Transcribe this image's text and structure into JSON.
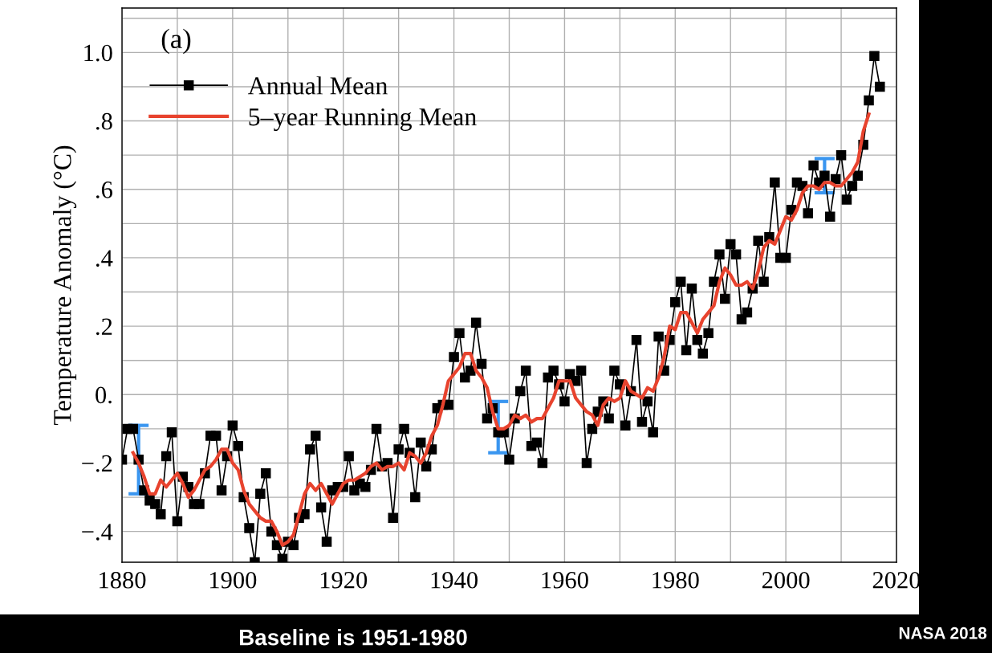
{
  "chart_data": {
    "type": "line",
    "ylabel": "Temperature Anomaly (°C)",
    "annotations": [
      "(a)",
      "Baseline is 1951-1980",
      "NASA 2018"
    ],
    "xlim": [
      1880,
      2020
    ],
    "xticks": [
      1880,
      {
        "value": 1890,
        "label": null
      },
      1900,
      {
        "value": 1910,
        "label": null
      },
      1920,
      {
        "value": 1930,
        "label": null
      },
      1940,
      {
        "value": 1950,
        "label": null
      },
      1960,
      {
        "value": 1970,
        "label": null
      },
      1980,
      {
        "value": 1990,
        "label": null
      },
      2000,
      {
        "value": 2010,
        "label": null
      },
      2020
    ],
    "ylim": [
      -0.49,
      1.13
    ],
    "yticks": [
      {
        "value": -0.4,
        "label": "−.4"
      },
      {
        "value": -0.3,
        "label": null
      },
      {
        "value": -0.2,
        "label": "−.2"
      },
      {
        "value": -0.1,
        "label": null
      },
      {
        "value": 0,
        "label": "0."
      },
      {
        "value": 0.1,
        "label": null
      },
      {
        "value": 0.2,
        "label": ".2"
      },
      {
        "value": 0.3,
        "label": null
      },
      {
        "value": 0.4,
        "label": ".4"
      },
      {
        "value": 0.5,
        "label": null
      },
      {
        "value": 0.6,
        "label": ".6"
      },
      {
        "value": 0.7,
        "label": null
      },
      {
        "value": 0.8,
        "label": ".8"
      },
      {
        "value": 0.9,
        "label": null
      },
      {
        "value": 1.0,
        "label": "1.0"
      },
      {
        "value": 1.1,
        "label": null
      }
    ],
    "grid": true,
    "legend": "top left",
    "series": [
      {
        "name": "Annual Mean",
        "color": "#000000",
        "marker": "square",
        "x": [
          1880,
          1881,
          1882,
          1883,
          1884,
          1885,
          1886,
          1887,
          1888,
          1889,
          1890,
          1891,
          1892,
          1893,
          1894,
          1895,
          1896,
          1897,
          1898,
          1899,
          1900,
          1901,
          1902,
          1903,
          1904,
          1905,
          1906,
          1907,
          1908,
          1909,
          1910,
          1911,
          1912,
          1913,
          1914,
          1915,
          1916,
          1917,
          1918,
          1919,
          1920,
          1921,
          1922,
          1923,
          1924,
          1925,
          1926,
          1927,
          1928,
          1929,
          1930,
          1931,
          1932,
          1933,
          1934,
          1935,
          1936,
          1937,
          1938,
          1939,
          1940,
          1941,
          1942,
          1943,
          1944,
          1945,
          1946,
          1947,
          1948,
          1949,
          1950,
          1951,
          1952,
          1953,
          1954,
          1955,
          1956,
          1957,
          1958,
          1959,
          1960,
          1961,
          1962,
          1963,
          1964,
          1965,
          1966,
          1967,
          1968,
          1969,
          1970,
          1971,
          1972,
          1973,
          1974,
          1975,
          1976,
          1977,
          1978,
          1979,
          1980,
          1981,
          1982,
          1983,
          1984,
          1985,
          1986,
          1987,
          1988,
          1989,
          1990,
          1991,
          1992,
          1993,
          1994,
          1995,
          1996,
          1997,
          1998,
          1999,
          2000,
          2001,
          2002,
          2003,
          2004,
          2005,
          2006,
          2007,
          2008,
          2009,
          2010,
          2011,
          2012,
          2013,
          2014,
          2015,
          2016,
          2017
        ],
        "values": [
          -0.19,
          -0.1,
          -0.1,
          -0.19,
          -0.28,
          -0.31,
          -0.32,
          -0.35,
          -0.18,
          -0.11,
          -0.37,
          -0.24,
          -0.27,
          -0.32,
          -0.32,
          -0.23,
          -0.12,
          -0.12,
          -0.28,
          -0.18,
          -0.09,
          -0.15,
          -0.3,
          -0.39,
          -0.49,
          -0.29,
          -0.23,
          -0.4,
          -0.44,
          -0.48,
          -0.43,
          -0.44,
          -0.36,
          -0.35,
          -0.16,
          -0.12,
          -0.33,
          -0.43,
          -0.28,
          -0.27,
          -0.27,
          -0.18,
          -0.28,
          -0.26,
          -0.27,
          -0.22,
          -0.1,
          -0.21,
          -0.2,
          -0.36,
          -0.16,
          -0.1,
          -0.17,
          -0.3,
          -0.14,
          -0.21,
          -0.16,
          -0.04,
          -0.03,
          -0.03,
          0.11,
          0.18,
          0.05,
          0.07,
          0.21,
          0.09,
          -0.07,
          -0.04,
          -0.11,
          -0.11,
          -0.19,
          -0.07,
          0.01,
          0.07,
          -0.15,
          -0.14,
          -0.2,
          0.05,
          0.07,
          0.03,
          -0.02,
          0.06,
          0.04,
          0.07,
          -0.2,
          -0.1,
          -0.05,
          -0.02,
          -0.07,
          0.07,
          0.03,
          -0.09,
          0.01,
          0.16,
          -0.08,
          -0.02,
          -0.11,
          0.17,
          0.07,
          0.16,
          0.27,
          0.33,
          0.13,
          0.31,
          0.16,
          0.12,
          0.18,
          0.33,
          0.41,
          0.28,
          0.44,
          0.41,
          0.22,
          0.24,
          0.31,
          0.45,
          0.33,
          0.46,
          0.62,
          0.4,
          0.4,
          0.54,
          0.62,
          0.61,
          0.53,
          0.67,
          0.62,
          0.64,
          0.52,
          0.63,
          0.7,
          0.57,
          0.61,
          0.64,
          0.73,
          0.86,
          0.99,
          0.9
        ],
        "errors": [
          null,
          null,
          null,
          [
            -0.29,
            -0.09
          ],
          null,
          null,
          null,
          null,
          null,
          null,
          null,
          null,
          null,
          null,
          null,
          null,
          null,
          null,
          null,
          null,
          null,
          null,
          null,
          null,
          null,
          null,
          null,
          null,
          null,
          null,
          null,
          null,
          null,
          null,
          null,
          null,
          null,
          null,
          null,
          null,
          null,
          null,
          null,
          null,
          null,
          null,
          null,
          null,
          null,
          null,
          null,
          null,
          null,
          null,
          null,
          null,
          null,
          null,
          null,
          null,
          null,
          null,
          null,
          null,
          null,
          null,
          null,
          null,
          [
            -0.17,
            -0.02
          ],
          null,
          null,
          null,
          null,
          null,
          null,
          null,
          null,
          null,
          null,
          null,
          null,
          null,
          null,
          null,
          null,
          null,
          null,
          null,
          null,
          null,
          null,
          null,
          null,
          null,
          null,
          null,
          null,
          null,
          null,
          null,
          null,
          null,
          null,
          null,
          null,
          null,
          null,
          null,
          null,
          null,
          null,
          null,
          null,
          null,
          null,
          null,
          null,
          null,
          null,
          null,
          null,
          null,
          null,
          null,
          null,
          null,
          null,
          [
            0.59,
            0.69
          ],
          null,
          null,
          null,
          null,
          null,
          null,
          null,
          null,
          null,
          null
        ]
      },
      {
        "name": "5–year Running Mean",
        "color": "#e8432e",
        "marker": "none",
        "x": [
          1882,
          1883,
          1884,
          1885,
          1886,
          1887,
          1888,
          1889,
          1890,
          1891,
          1892,
          1893,
          1894,
          1895,
          1896,
          1897,
          1898,
          1899,
          1900,
          1901,
          1902,
          1903,
          1904,
          1905,
          1906,
          1907,
          1908,
          1909,
          1910,
          1911,
          1912,
          1913,
          1914,
          1915,
          1916,
          1917,
          1918,
          1919,
          1920,
          1921,
          1922,
          1923,
          1924,
          1925,
          1926,
          1927,
          1928,
          1929,
          1930,
          1931,
          1932,
          1933,
          1934,
          1935,
          1936,
          1937,
          1938,
          1939,
          1940,
          1941,
          1942,
          1943,
          1944,
          1945,
          1946,
          1947,
          1948,
          1949,
          1950,
          1951,
          1952,
          1953,
          1954,
          1955,
          1956,
          1957,
          1958,
          1959,
          1960,
          1961,
          1962,
          1963,
          1964,
          1965,
          1966,
          1967,
          1968,
          1969,
          1970,
          1971,
          1972,
          1973,
          1974,
          1975,
          1976,
          1977,
          1978,
          1979,
          1980,
          1981,
          1982,
          1983,
          1984,
          1985,
          1986,
          1987,
          1988,
          1989,
          1990,
          1991,
          1992,
          1993,
          1994,
          1995,
          1996,
          1997,
          1998,
          1999,
          2000,
          2001,
          2002,
          2003,
          2004,
          2005,
          2006,
          2007,
          2008,
          2009,
          2010,
          2011,
          2012,
          2013,
          2014,
          2015
        ],
        "values": [
          -0.17,
          -0.2,
          -0.24,
          -0.29,
          -0.29,
          -0.25,
          -0.27,
          -0.25,
          -0.23,
          -0.26,
          -0.3,
          -0.28,
          -0.25,
          -0.22,
          -0.21,
          -0.19,
          -0.16,
          -0.16,
          -0.2,
          -0.22,
          -0.28,
          -0.32,
          -0.34,
          -0.36,
          -0.37,
          -0.37,
          -0.4,
          -0.44,
          -0.43,
          -0.41,
          -0.35,
          -0.29,
          -0.26,
          -0.28,
          -0.26,
          -0.29,
          -0.32,
          -0.29,
          -0.26,
          -0.25,
          -0.25,
          -0.24,
          -0.23,
          -0.21,
          -0.2,
          -0.22,
          -0.21,
          -0.21,
          -0.2,
          -0.22,
          -0.17,
          -0.18,
          -0.2,
          -0.17,
          -0.12,
          -0.09,
          -0.03,
          0.04,
          0.06,
          0.08,
          0.12,
          0.12,
          0.07,
          0.05,
          0.02,
          -0.05,
          -0.1,
          -0.1,
          -0.09,
          -0.06,
          -0.07,
          -0.06,
          -0.08,
          -0.07,
          -0.07,
          -0.04,
          -0.01,
          0.04,
          0.04,
          0.04,
          -0.01,
          -0.03,
          -0.05,
          -0.06,
          -0.09,
          -0.03,
          -0.01,
          -0.02,
          -0.01,
          0.04,
          0.01,
          0.0,
          -0.01,
          0.02,
          0.01,
          0.05,
          0.11,
          0.2,
          0.19,
          0.24,
          0.24,
          0.21,
          0.18,
          0.22,
          0.24,
          0.26,
          0.33,
          0.37,
          0.35,
          0.32,
          0.32,
          0.33,
          0.31,
          0.36,
          0.43,
          0.45,
          0.44,
          0.48,
          0.52,
          0.51,
          0.54,
          0.59,
          0.61,
          0.61,
          0.6,
          0.62,
          0.62,
          0.61,
          0.61,
          0.63,
          0.65,
          0.68,
          0.77,
          0.82
        ]
      }
    ]
  }
}
